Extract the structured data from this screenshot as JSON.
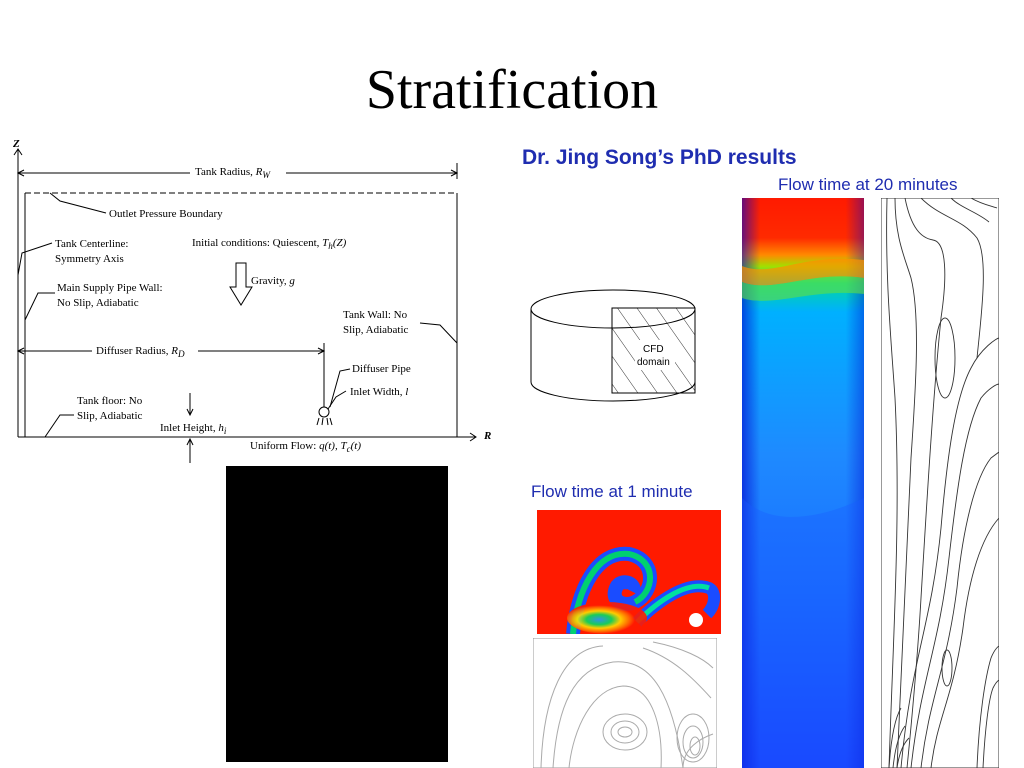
{
  "slide": {
    "title": "Stratification",
    "heading": "Dr. Jing Song’s PhD results",
    "caption_20min": "Flow time at 20 minutes",
    "caption_1min": "Flow time at 1 minute"
  },
  "schematic": {
    "axis_z": "Z",
    "axis_r": "R",
    "tank_radius": "Tank Radius, ",
    "tank_radius_sym": "R",
    "tank_radius_sub": "W",
    "outlet": "Outlet Pressure Boundary",
    "centerline_1": "Tank Centerline:",
    "centerline_2": "Symmetry Axis",
    "initial": "Initial conditions: Quiescent, ",
    "initial_sym": "T",
    "initial_sub": "h",
    "initial_arg": "(Z)",
    "gravity": "Gravity, ",
    "gravity_sym": "g",
    "supply_1": "Main Supply Pipe Wall:",
    "supply_2": "No Slip, Adiabatic",
    "tank_wall_1": "Tank Wall: No",
    "tank_wall_2": "Slip, Adiabatic",
    "diffuser_radius": "Diffuser Radius, ",
    "diffuser_radius_sym": "R",
    "diffuser_radius_sub": "D",
    "diffuser_pipe": "Diffuser Pipe",
    "inlet_width": "Inlet Width, ",
    "inlet_width_sym": "l",
    "floor_1": "Tank floor: No",
    "floor_2": "Slip, Adiabatic",
    "inlet_height": "Inlet Height, ",
    "inlet_height_sym": "h",
    "inlet_height_sub": "i",
    "uniform_flow": "Uniform Flow: ",
    "uniform_flow_sym": "q(t), T",
    "uniform_flow_sub": "c",
    "uniform_flow_arg": "(t)"
  },
  "cylinder": {
    "label_1": "CFD",
    "label_2": "domain"
  },
  "colors": {
    "accent": "#1f2db0",
    "cfd_red": "#ff1a00",
    "cfd_blue": "#1a4cff"
  }
}
